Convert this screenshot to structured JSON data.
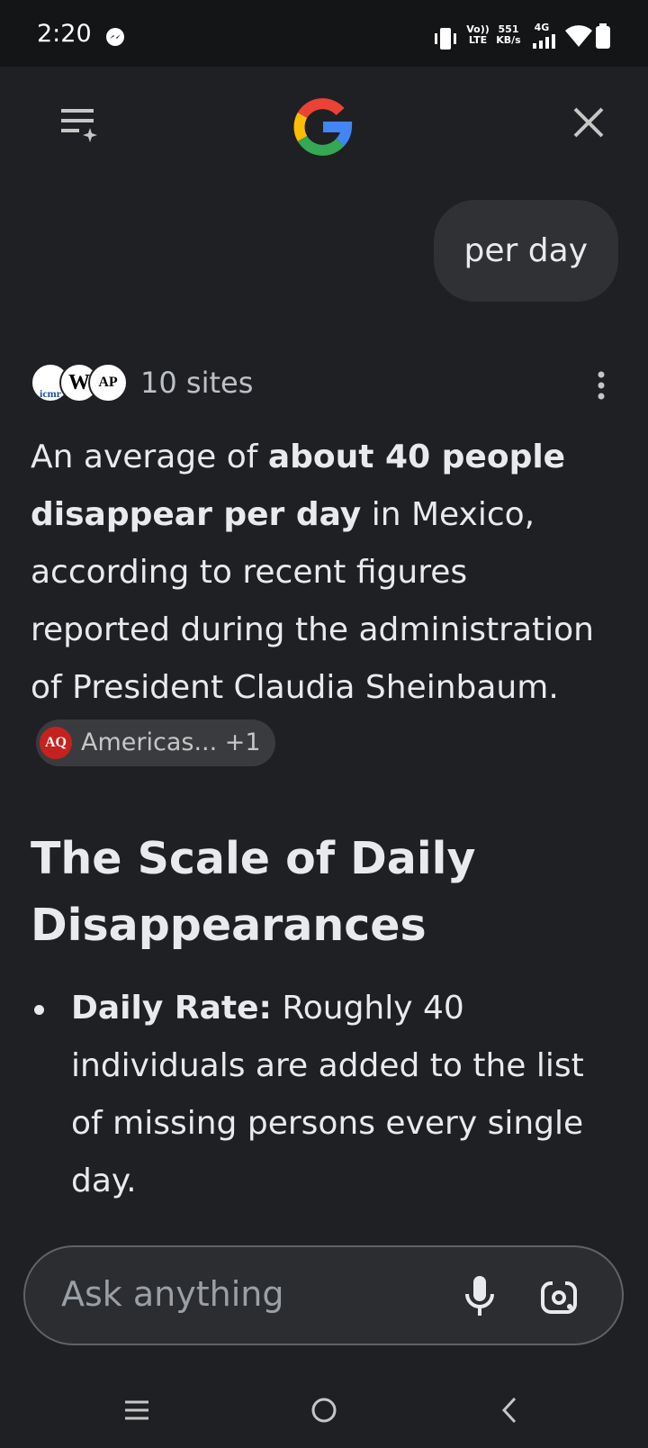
{
  "status_bar": {
    "time": "2:20",
    "volte": "Vo)) LTE",
    "speed": "551 KB/s",
    "network": "4G"
  },
  "conversation": {
    "query": "per day"
  },
  "answer": {
    "sources": {
      "icons": [
        "icmr",
        "W",
        "AP"
      ],
      "label": "10 sites"
    },
    "paragraph": {
      "before": "An average of ",
      "bold": "about 40 people disappear per day",
      "after": " in Mexico, according to recent figures reported during the administration of President Claudia Sheinbaum."
    },
    "citation": {
      "icon": "AQ",
      "label": "Americas... +1"
    },
    "heading": "The Scale of Daily Disappearances",
    "bullets": [
      {
        "label": "Daily Rate:",
        "text": " Roughly 40 individuals are added to the list of missing persons every single day."
      }
    ]
  },
  "input": {
    "placeholder": "Ask anything"
  }
}
